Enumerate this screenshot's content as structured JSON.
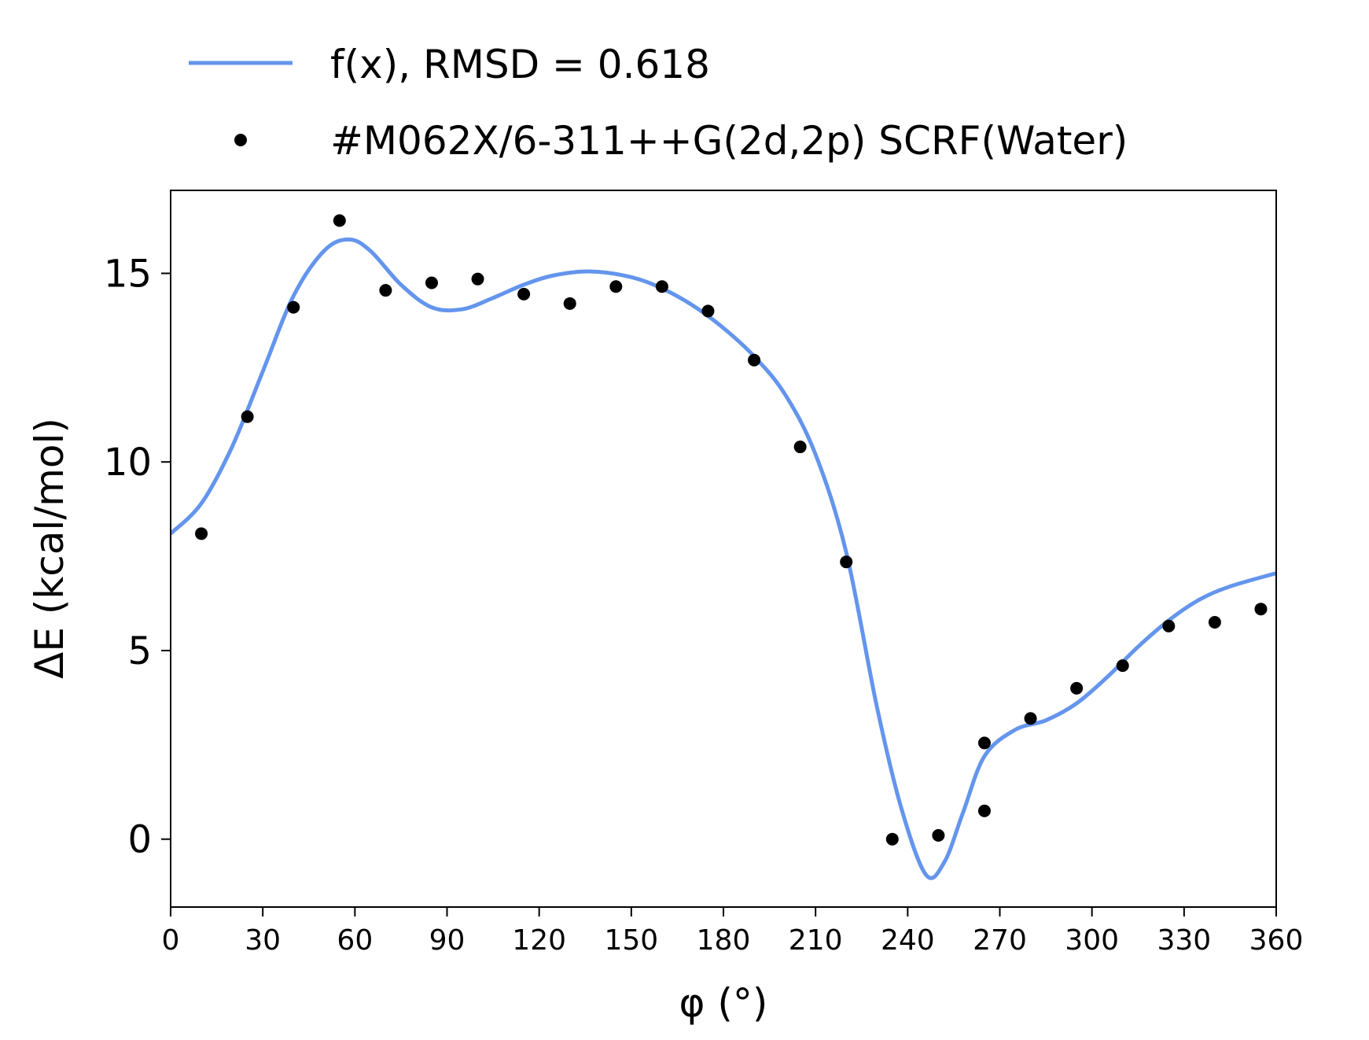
{
  "chart_data": {
    "type": "line",
    "title": "",
    "xlabel": "φ (°)",
    "ylabel": "ΔE (kcal/mol)",
    "xlim": [
      0,
      360
    ],
    "ylim": [
      -1.8,
      17.2
    ],
    "xticks": [
      0,
      30,
      60,
      90,
      120,
      150,
      180,
      210,
      240,
      270,
      300,
      330,
      360
    ],
    "yticks": [
      0,
      5,
      10,
      15
    ],
    "grid": false,
    "legend": "top",
    "series": [
      {
        "name": "f(x), RMSD = 0.618",
        "kind": "line",
        "color": "#6495ED",
        "x": [
          0,
          10,
          20,
          30,
          40,
          50,
          58,
          65,
          75,
          85,
          95,
          105,
          115,
          125,
          137,
          150,
          160,
          170,
          180,
          190,
          200,
          210,
          220,
          230,
          238,
          246,
          252,
          258,
          265,
          275,
          285,
          295,
          305,
          315,
          325,
          335,
          345,
          360
        ],
        "y": [
          8.1,
          8.9,
          10.4,
          12.4,
          14.4,
          15.6,
          15.9,
          15.6,
          14.7,
          14.1,
          14.05,
          14.35,
          14.7,
          14.95,
          15.05,
          14.9,
          14.6,
          14.15,
          13.55,
          12.8,
          11.8,
          10.2,
          7.6,
          3.5,
          0.8,
          -0.95,
          -0.6,
          0.7,
          2.2,
          2.9,
          3.15,
          3.6,
          4.3,
          5.1,
          5.8,
          6.35,
          6.7,
          7.05
        ]
      },
      {
        "name": "#M062X/6-311++G(2d,2p) SCRF(Water)",
        "kind": "scatter",
        "color": "#000000",
        "x": [
          10,
          25,
          40,
          55,
          70,
          85,
          100,
          115,
          130,
          145,
          160,
          175,
          190,
          205,
          220,
          235,
          250,
          265,
          265,
          280,
          295,
          310,
          325,
          340,
          355
        ],
        "y": [
          8.1,
          11.2,
          14.1,
          16.4,
          14.55,
          14.75,
          14.85,
          14.45,
          14.2,
          14.65,
          14.65,
          14.0,
          12.7,
          10.4,
          7.35,
          0.0,
          0.1,
          0.75,
          2.55,
          3.2,
          4.0,
          4.6,
          5.65,
          5.75,
          6.1
        ]
      }
    ]
  }
}
